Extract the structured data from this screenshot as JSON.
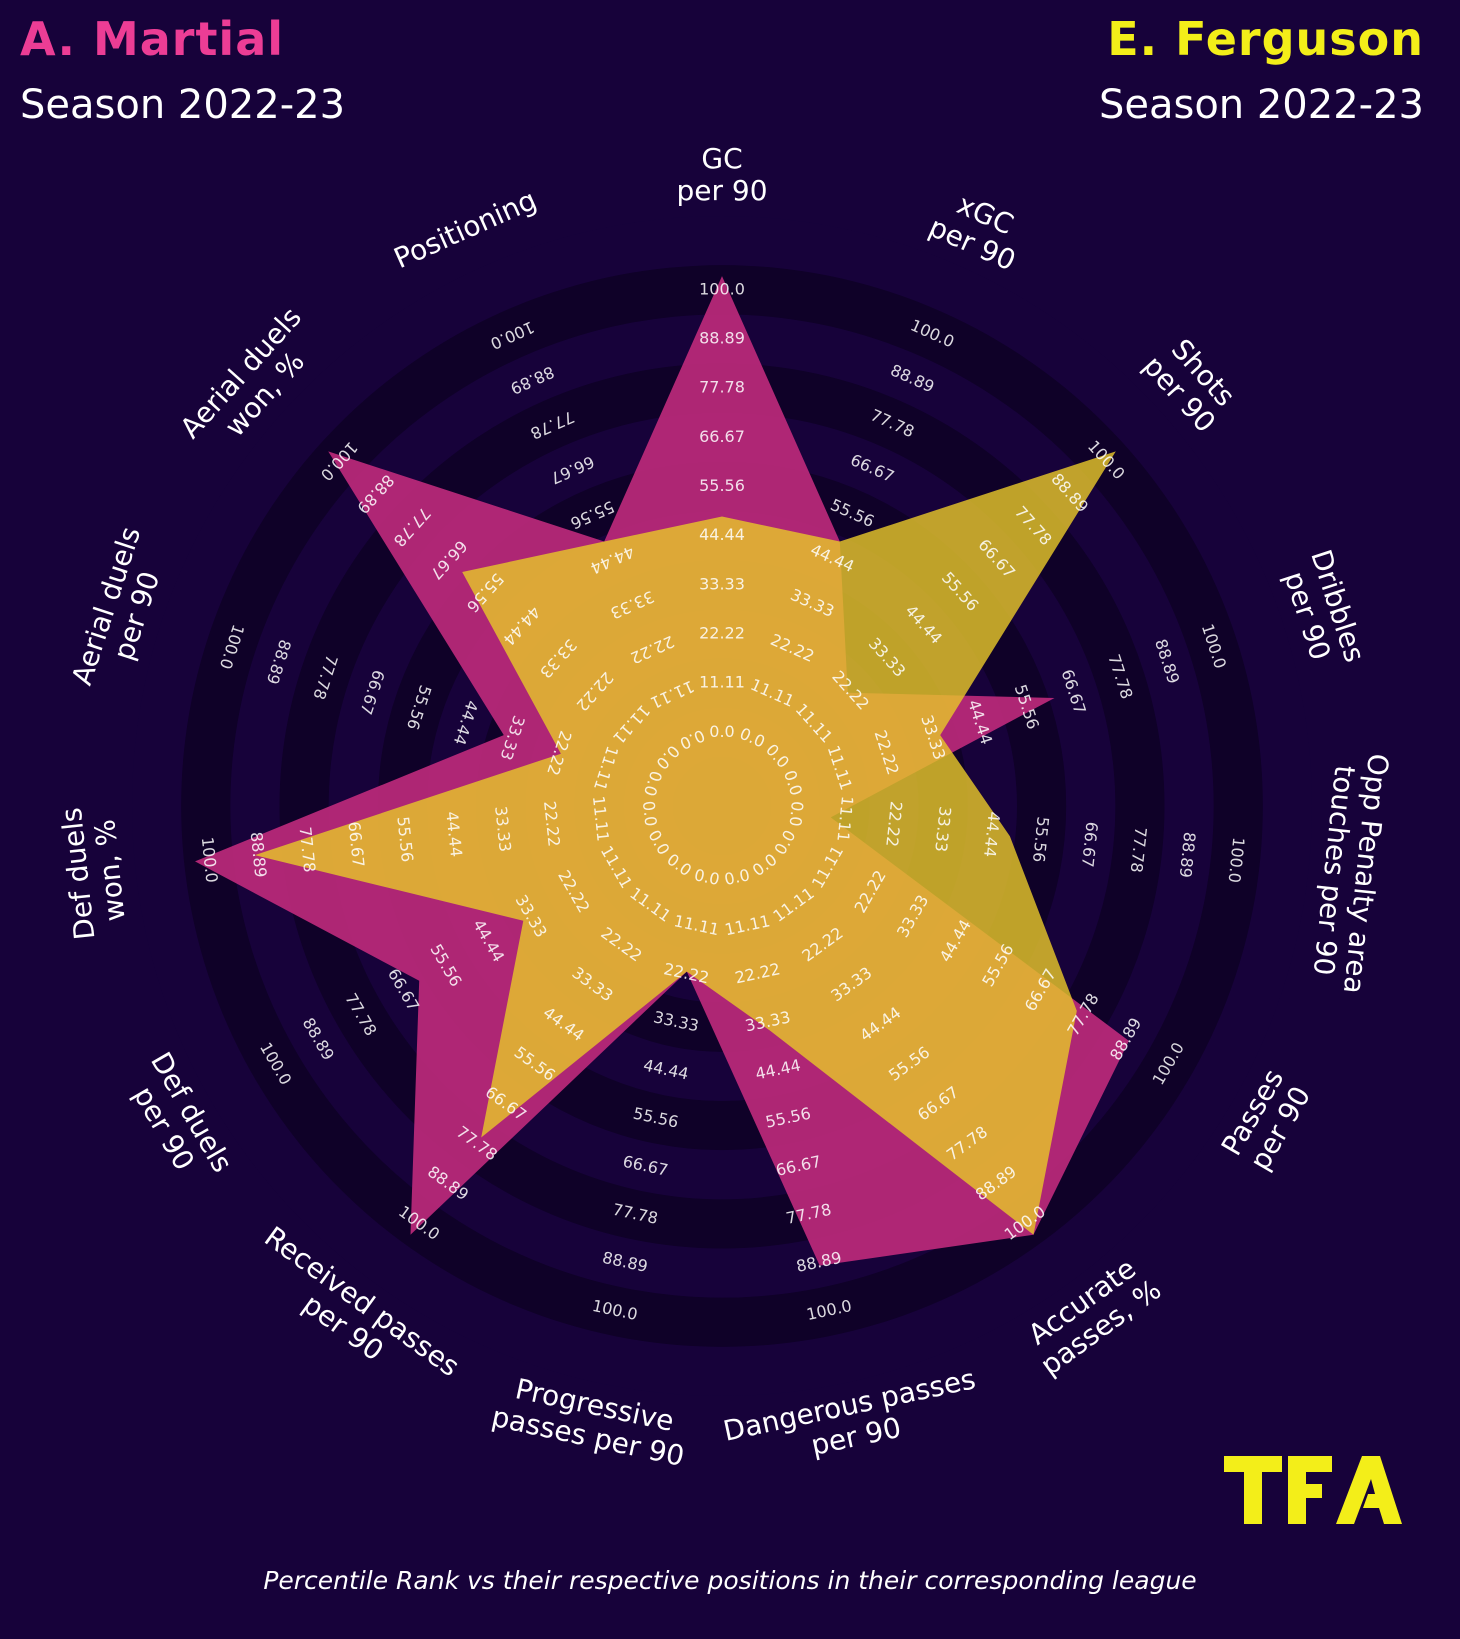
{
  "players": {
    "left": {
      "name": "A. Martial",
      "season": "Season 2022-23",
      "color": "#c02a7c"
    },
    "right": {
      "name": "E. Ferguson",
      "season": "Season 2022-23",
      "color": "#e6c62a"
    }
  },
  "colors": {
    "background": "#17023a",
    "ring_dark": "#0f0128",
    "left_title": "#ec3d95",
    "right_title": "#f3ee19",
    "logo": "#f3ee19"
  },
  "footer": "Percentile Rank vs their respective positions in their corresponding league",
  "logo": {
    "text": "TFA"
  },
  "chart_data": {
    "type": "radar",
    "range": [
      0,
      100
    ],
    "ring_labels": [
      "0.0",
      "11.11",
      "22.22",
      "33.33",
      "44.44",
      "55.56",
      "66.67",
      "77.78",
      "88.89",
      "100.0"
    ],
    "categories": [
      "GC\nper 90",
      "xGC\nper 90",
      "Shots\nper 90",
      "Dribbles\nper 90",
      "Opp Penalty area\ntouches per 90",
      "Passes\nper 90",
      "Accurate\npasses, %",
      "Dangerous passes\nper 90",
      "Progressive\npasses per 90",
      "Received passes\nper 90",
      "Def duels\nper 90",
      "Def duels\nwon, %",
      "Aerial duels\nper 90",
      "Aerial duels\nwon, %",
      "Positioning"
    ],
    "series": [
      {
        "name": "A. Martial",
        "color": "#c02a7c",
        "values": [
          88.89,
          44.44,
          22.22,
          55.56,
          11.11,
          77.78,
          88.89,
          77.78,
          22.22,
          88.89,
          55.56,
          88.89,
          33.33,
          88.89,
          44.44
        ]
      },
      {
        "name": "E. Ferguson",
        "color": "#e6c62a",
        "values": [
          44.44,
          44.44,
          88.89,
          33.33,
          44.44,
          66.67,
          88.89,
          33.33,
          22.22,
          66.67,
          33.33,
          77.78,
          22.22,
          55.56,
          44.44
        ]
      }
    ],
    "grid": true,
    "legend": "none"
  }
}
